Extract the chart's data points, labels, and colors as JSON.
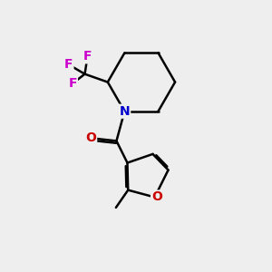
{
  "background_color": "#eeeeee",
  "bond_color": "#000000",
  "bond_width": 1.8,
  "atom_colors": {
    "N": "#0000cc",
    "O_furan": "#cc0000",
    "O_carbonyl": "#cc0000",
    "F": "#cc00cc"
  },
  "font_size_atoms": 10,
  "font_size_F": 10,
  "xlim": [
    0,
    10
  ],
  "ylim": [
    0,
    10
  ]
}
